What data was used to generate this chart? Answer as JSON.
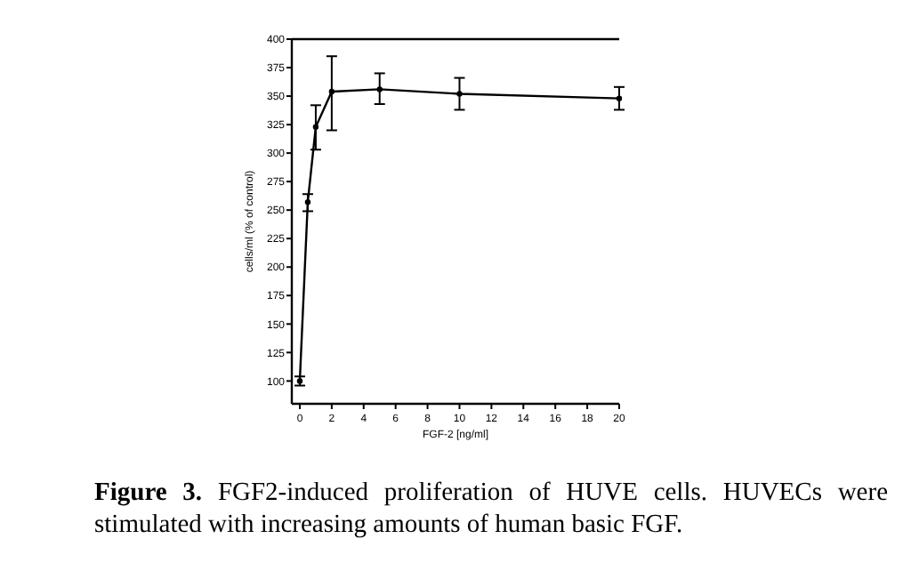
{
  "chart_data": {
    "type": "line",
    "xlabel": "FGF-2 [ng/ml]",
    "ylabel": "cells/ml (% of control)",
    "x": [
      0,
      0.5,
      1,
      2,
      5,
      10,
      20
    ],
    "series": [
      {
        "color": "#000000",
        "values": [
          100,
          257,
          323,
          354,
          356,
          352,
          348
        ],
        "errors": [
          4,
          [
            249,
            264
          ],
          [
            303,
            342
          ],
          [
            320,
            385
          ],
          [
            343,
            370
          ],
          [
            338,
            366
          ],
          10
        ]
      }
    ],
    "xlim": [
      -0.5,
      20
    ],
    "ylim": [
      80,
      400
    ],
    "xticks": [
      0,
      2,
      4,
      6,
      8,
      10,
      12,
      14,
      16,
      18,
      20
    ],
    "yticks": [
      100,
      125,
      150,
      175,
      200,
      225,
      250,
      275,
      300,
      325,
      350,
      375,
      400
    ],
    "marker": "circle",
    "line_style": "solid",
    "grid": false,
    "annotations": [
      "Figure 3.",
      "FGF2-induced proliferation of HUVE cells. HUVECs were stimulated with increasing amounts of human basic FGF."
    ]
  }
}
